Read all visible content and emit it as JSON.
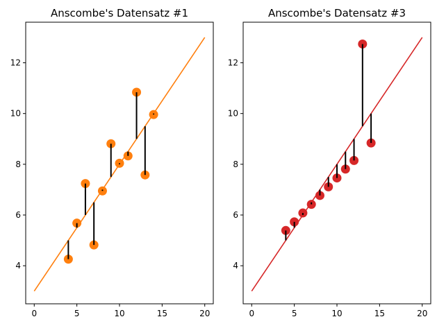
{
  "chart_data": [
    {
      "type": "scatter",
      "title": "Anscombe's Datensatz #1",
      "xlabel": "",
      "ylabel": "",
      "xlim": [
        -1,
        21
      ],
      "ylim": [
        2.5,
        13.6
      ],
      "xticks": [
        0,
        5,
        10,
        15,
        20
      ],
      "yticks": [
        4,
        6,
        8,
        10,
        12
      ],
      "grid": false,
      "color": "#ff7f0e",
      "fit_line": {
        "x": [
          0,
          20
        ],
        "y": [
          3.0,
          13.0
        ]
      },
      "residual_lines": true,
      "points": {
        "x": [
          10,
          8,
          13,
          9,
          11,
          14,
          6,
          4,
          12,
          7,
          5
        ],
        "y": [
          8.04,
          6.95,
          7.58,
          8.81,
          8.33,
          9.96,
          7.24,
          4.26,
          10.84,
          4.82,
          5.68
        ]
      }
    },
    {
      "type": "scatter",
      "title": "Anscombe's Datensatz #3",
      "xlabel": "",
      "ylabel": "",
      "xlim": [
        -1,
        21
      ],
      "ylim": [
        2.5,
        13.6
      ],
      "xticks": [
        0,
        5,
        10,
        15,
        20
      ],
      "yticks": [
        4,
        6,
        8,
        10,
        12
      ],
      "grid": false,
      "color": "#d62728",
      "fit_line": {
        "x": [
          0,
          20
        ],
        "y": [
          3.0,
          13.0
        ]
      },
      "residual_lines": true,
      "points": {
        "x": [
          10,
          8,
          13,
          9,
          11,
          14,
          6,
          4,
          12,
          7,
          5
        ],
        "y": [
          7.46,
          6.77,
          12.74,
          7.11,
          7.81,
          8.84,
          6.08,
          5.39,
          8.15,
          6.42,
          5.73
        ]
      }
    }
  ]
}
